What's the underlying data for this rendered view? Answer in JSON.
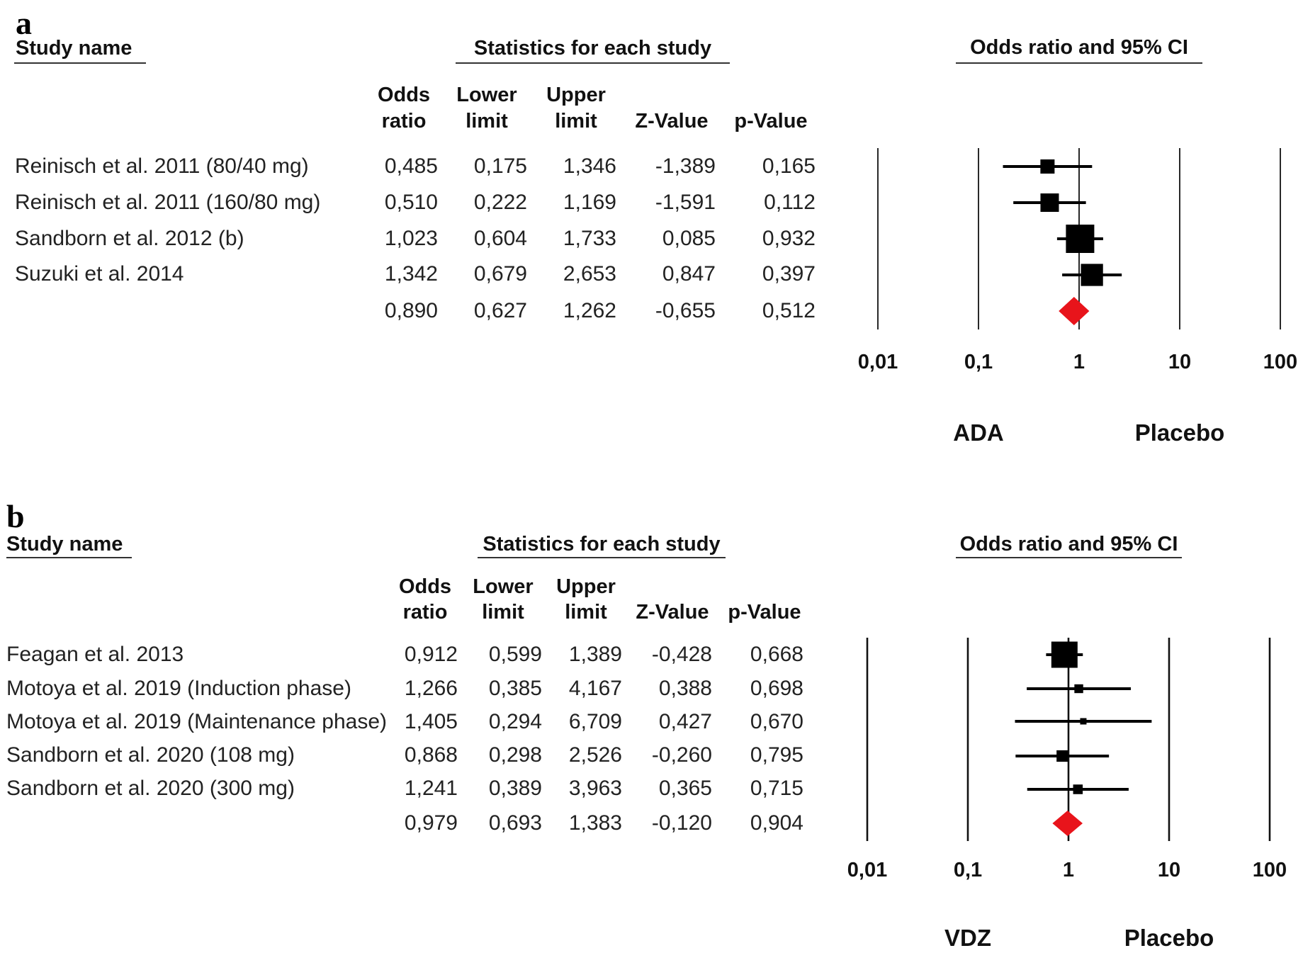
{
  "panels": [
    {
      "letter": "a",
      "study_name_header": "Study name",
      "stats_header": "Statistics for each study",
      "plot_header": "Odds ratio and 95% CI",
      "columns": [
        {
          "line1": "Odds",
          "line2": "ratio"
        },
        {
          "line1": "Lower",
          "line2": "limit"
        },
        {
          "line1": "Upper",
          "line2": "limit"
        },
        {
          "line1": "",
          "line2": "Z-Value"
        },
        {
          "line1": "",
          "line2": "p-Value"
        }
      ],
      "rows": [
        {
          "study": "Reinisch et al. 2011 (80/40 mg)",
          "values": [
            "0,485",
            "0,175",
            "1,346",
            "-1,389",
            "0,165"
          ]
        },
        {
          "study": "Reinisch et al. 2011 (160/80 mg)",
          "values": [
            "0,510",
            "0,222",
            "1,169",
            "-1,591",
            "0,112"
          ]
        },
        {
          "study": "Sandborn et al. 2012 (b)",
          "values": [
            "1,023",
            "0,604",
            "1,733",
            "0,085",
            "0,932"
          ]
        },
        {
          "study": "Suzuki et al. 2014",
          "values": [
            "1,342",
            "0,679",
            "2,653",
            "0,847",
            "0,397"
          ]
        },
        {
          "study": "",
          "values": [
            "0,890",
            "0,627",
            "1,262",
            "-0,655",
            "0,512"
          ]
        }
      ],
      "tick_labels": [
        "0,01",
        "0,1",
        "1",
        "10",
        "100"
      ],
      "favours_left": "ADA",
      "favours_right": "Placebo"
    },
    {
      "letter": "b",
      "study_name_header": "Study name",
      "stats_header": "Statistics for each study",
      "plot_header": "Odds ratio and 95% CI",
      "columns": [
        {
          "line1": "Odds",
          "line2": "ratio"
        },
        {
          "line1": "Lower",
          "line2": "limit"
        },
        {
          "line1": "Upper",
          "line2": "limit"
        },
        {
          "line1": "",
          "line2": "Z-Value"
        },
        {
          "line1": "",
          "line2": "p-Value"
        }
      ],
      "rows": [
        {
          "study": "Feagan et al. 2013",
          "values": [
            "0,912",
            "0,599",
            "1,389",
            "-0,428",
            "0,668"
          ]
        },
        {
          "study": "Motoya et al. 2019 (Induction phase)",
          "values": [
            "1,266",
            "0,385",
            "4,167",
            "0,388",
            "0,698"
          ]
        },
        {
          "study": "Motoya et al. 2019 (Maintenance phase)",
          "values": [
            "1,405",
            "0,294",
            "6,709",
            "0,427",
            "0,670"
          ]
        },
        {
          "study": "Sandborn et al. 2020 (108 mg)",
          "values": [
            "0,868",
            "0,298",
            "2,526",
            "-0,260",
            "0,795"
          ]
        },
        {
          "study": "Sandborn et al. 2020 (300 mg)",
          "values": [
            "1,241",
            "0,389",
            "3,963",
            "0,365",
            "0,715"
          ]
        },
        {
          "study": "",
          "values": [
            "0,979",
            "0,693",
            "1,383",
            "-0,120",
            "0,904"
          ]
        }
      ],
      "tick_labels": [
        "0,01",
        "0,1",
        "1",
        "10",
        "100"
      ],
      "favours_left": "VDZ",
      "favours_right": "Placebo"
    }
  ],
  "colors": {
    "study_marker": "#000000",
    "summary_diamond": "#e8141b",
    "grid_line": "#111111"
  },
  "chart_data": [
    {
      "type": "forest",
      "panel": "a",
      "title": "Odds ratio and 95% CI",
      "xscale": "log",
      "xlim": [
        0.01,
        100
      ],
      "xticks": [
        0.01,
        0.1,
        1,
        10,
        100
      ],
      "xtick_labels": [
        "0,01",
        "0,1",
        "1",
        "10",
        "100"
      ],
      "xlabel_left": "ADA",
      "xlabel_right": "Placebo",
      "grid": true,
      "studies": [
        {
          "name": "Reinisch et al. 2011 (80/40 mg)",
          "or": 0.485,
          "lower": 0.175,
          "upper": 1.346,
          "z": -1.389,
          "p": 0.165,
          "relative_weight": 0.5
        },
        {
          "name": "Reinisch et al. 2011 (160/80 mg)",
          "or": 0.51,
          "lower": 0.222,
          "upper": 1.169,
          "z": -1.591,
          "p": 0.112,
          "relative_weight": 0.65
        },
        {
          "name": "Sandborn et al. 2012 (b)",
          "or": 1.023,
          "lower": 0.604,
          "upper": 1.733,
          "z": 0.085,
          "p": 0.932,
          "relative_weight": 1.0
        },
        {
          "name": "Suzuki et al. 2014",
          "or": 1.342,
          "lower": 0.679,
          "upper": 2.653,
          "z": 0.847,
          "p": 0.397,
          "relative_weight": 0.78
        }
      ],
      "summary": {
        "or": 0.89,
        "lower": 0.627,
        "upper": 1.262,
        "z": -0.655,
        "p": 0.512
      }
    },
    {
      "type": "forest",
      "panel": "b",
      "title": "Odds ratio and 95% CI",
      "xscale": "log",
      "xlim": [
        0.01,
        100
      ],
      "xticks": [
        0.01,
        0.1,
        1,
        10,
        100
      ],
      "xtick_labels": [
        "0,01",
        "0,1",
        "1",
        "10",
        "100"
      ],
      "xlabel_left": "VDZ",
      "xlabel_right": "Placebo",
      "grid": true,
      "studies": [
        {
          "name": "Feagan et al. 2013",
          "or": 0.912,
          "lower": 0.599,
          "upper": 1.389,
          "z": -0.428,
          "p": 0.668,
          "relative_weight": 1.0
        },
        {
          "name": "Motoya et al. 2019 (Induction phase)",
          "or": 1.266,
          "lower": 0.385,
          "upper": 4.167,
          "z": 0.388,
          "p": 0.698,
          "relative_weight": 0.35
        },
        {
          "name": "Motoya et al. 2019 (Maintenance phase)",
          "or": 1.405,
          "lower": 0.294,
          "upper": 6.709,
          "z": 0.427,
          "p": 0.67,
          "relative_weight": 0.26
        },
        {
          "name": "Sandborn et al. 2020 (108 mg)",
          "or": 0.868,
          "lower": 0.298,
          "upper": 2.526,
          "z": -0.26,
          "p": 0.795,
          "relative_weight": 0.45
        },
        {
          "name": "Sandborn et al. 2020 (300 mg)",
          "or": 1.241,
          "lower": 0.389,
          "upper": 3.963,
          "z": 0.365,
          "p": 0.715,
          "relative_weight": 0.38
        }
      ],
      "summary": {
        "or": 0.979,
        "lower": 0.693,
        "upper": 1.383,
        "z": -0.12,
        "p": 0.904
      }
    }
  ]
}
